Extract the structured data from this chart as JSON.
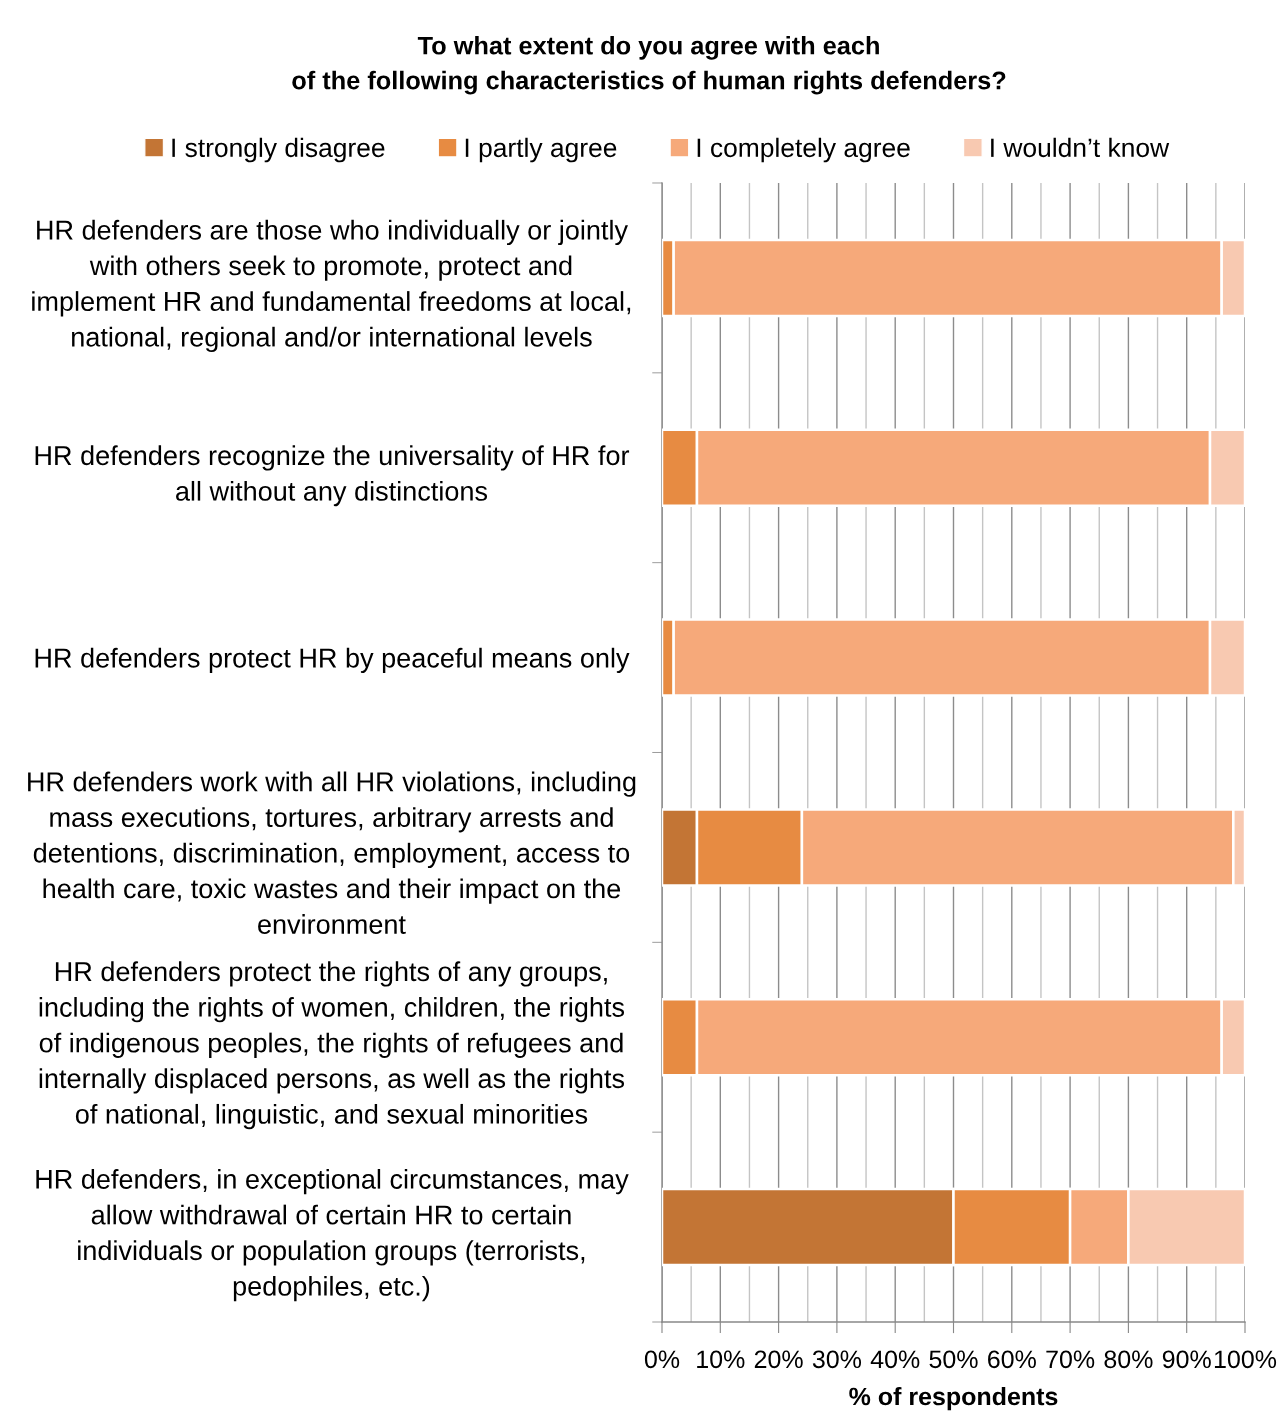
{
  "chart_data": {
    "type": "bar",
    "orientation": "horizontal",
    "stacked": true,
    "title": "To what extent do you agree with each\nof the following characteristics of human rights defenders?",
    "xlabel": "% of respondents",
    "categories": [
      "HR defenders are those who individually or jointly\nwith others seek to promote, protect and\nimplement HR and fundamental freedoms at local,\nnational, regional and/or international levels",
      "HR defenders recognize the universality of HR for\nall without any distinctions",
      "HR defenders protect HR by peaceful means only",
      "HR defenders work with all HR violations, including\nmass executions, tortures, arbitrary arrests and\ndetentions, discrimination, employment, access to\nhealth care, toxic wastes and their impact on the\nenvironment",
      "HR defenders protect the rights of any groups,\nincluding the rights of women, children, the rights\nof indigenous peoples, the rights of refugees and\ninternally displaced persons, as well as the rights\nof national, linguistic, and sexual minorities",
      "HR defenders, in exceptional circumstances, may\nallow withdrawal of certain HR to certain\nindividuals or population groups (terrorists,\npedophiles, etc.)"
    ],
    "series": [
      {
        "name": "I strongly disagree",
        "color": "#c37535",
        "values": [
          0,
          0,
          0,
          6,
          0,
          50
        ]
      },
      {
        "name": "I partly agree",
        "color": "#e78b42",
        "values": [
          2,
          6,
          2,
          18,
          6,
          20
        ]
      },
      {
        "name": "I completely agree",
        "color": "#f6a97a",
        "values": [
          94,
          88,
          92,
          74,
          90,
          10
        ]
      },
      {
        "name": "I wouldn’t know",
        "color": "#f8c9b1",
        "values": [
          4,
          6,
          6,
          2,
          4,
          20
        ]
      }
    ],
    "xlim": [
      0,
      100
    ],
    "xticks": [
      {
        "value": 0,
        "label": "0%"
      },
      {
        "value": 5,
        "label": null
      },
      {
        "value": 10,
        "label": "10%"
      },
      {
        "value": 15,
        "label": null
      },
      {
        "value": 20,
        "label": "20%"
      },
      {
        "value": 25,
        "label": null
      },
      {
        "value": 30,
        "label": "30%"
      },
      {
        "value": 35,
        "label": null
      },
      {
        "value": 40,
        "label": "40%"
      },
      {
        "value": 45,
        "label": null
      },
      {
        "value": 50,
        "label": "50%"
      },
      {
        "value": 55,
        "label": null
      },
      {
        "value": 60,
        "label": "60%"
      },
      {
        "value": 65,
        "label": null
      },
      {
        "value": 70,
        "label": "70%"
      },
      {
        "value": 75,
        "label": null
      },
      {
        "value": 80,
        "label": "80%"
      },
      {
        "value": 85,
        "label": null
      },
      {
        "value": 90,
        "label": "90%"
      },
      {
        "value": 95,
        "label": null
      },
      {
        "value": 100,
        "label": "100%"
      }
    ],
    "grid": "x",
    "legend": "top"
  }
}
